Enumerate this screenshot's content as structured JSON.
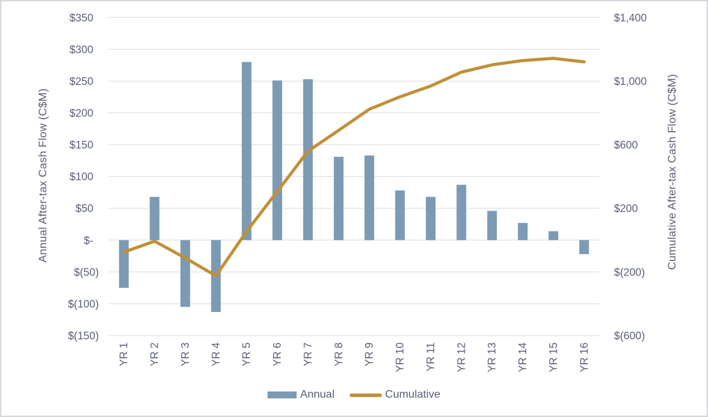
{
  "chart": {
    "left_axis_title": "Annual After-tax Cash Flow (C$M)",
    "right_axis_title": "Cumulative After-tax Cash Flow (C$M)",
    "legend": [
      {
        "label": "Annual"
      },
      {
        "label": "Cumulative"
      }
    ]
  },
  "colors": {
    "bar": "#7d9ab5",
    "line": "#bf9136",
    "text": "#585e73",
    "gridline": "#dadde3",
    "background": "#ffffff",
    "frame_border": "#d8d8dc"
  },
  "chart_data": {
    "type": "bar",
    "subtype": "combo-bar-line",
    "categories": [
      "YR 1",
      "YR 2",
      "YR 3",
      "YR 4",
      "YR 5",
      "YR 6",
      "YR 7",
      "YR 8",
      "YR 9",
      "YR 10",
      "YR 11",
      "YR 12",
      "YR 13",
      "YR 14",
      "YR 15",
      "YR 16"
    ],
    "series": [
      {
        "name": "Annual",
        "type": "bar",
        "axis": "left",
        "color": "#7d9ab5",
        "values": [
          -75,
          68,
          -105,
          -113,
          280,
          251,
          253,
          131,
          133,
          78,
          68,
          87,
          46,
          27,
          14,
          -22
        ]
      },
      {
        "name": "Cumulative",
        "type": "line",
        "axis": "right",
        "color": "#bf9136",
        "values": [
          -75,
          -7,
          -112,
          -225,
          55,
          306,
          559,
          690,
          823,
          901,
          969,
          1056,
          1102,
          1129,
          1143,
          1121
        ]
      }
    ],
    "left_axis": {
      "label": "Annual After-tax Cash Flow (C$M)",
      "min": -150,
      "max": 350,
      "tick_step": 50,
      "tick_labels": [
        "$350",
        "$300",
        "$250",
        "$200",
        "$150",
        "$100",
        "$50",
        "$-",
        "$(50)",
        "$(100)",
        "$(150)"
      ]
    },
    "right_axis": {
      "label": "Cumulative After-tax Cash Flow (C$M)",
      "min": -600,
      "max": 1400,
      "tick_step": 200,
      "labeled_values": [
        1400,
        1000,
        600,
        200,
        -200,
        -600
      ],
      "tick_labels": [
        "$1,400",
        "$1,000",
        "$600",
        "$200",
        "$(200)",
        "$(600)"
      ]
    },
    "grid": true,
    "legend_position": "bottom",
    "title": ""
  }
}
